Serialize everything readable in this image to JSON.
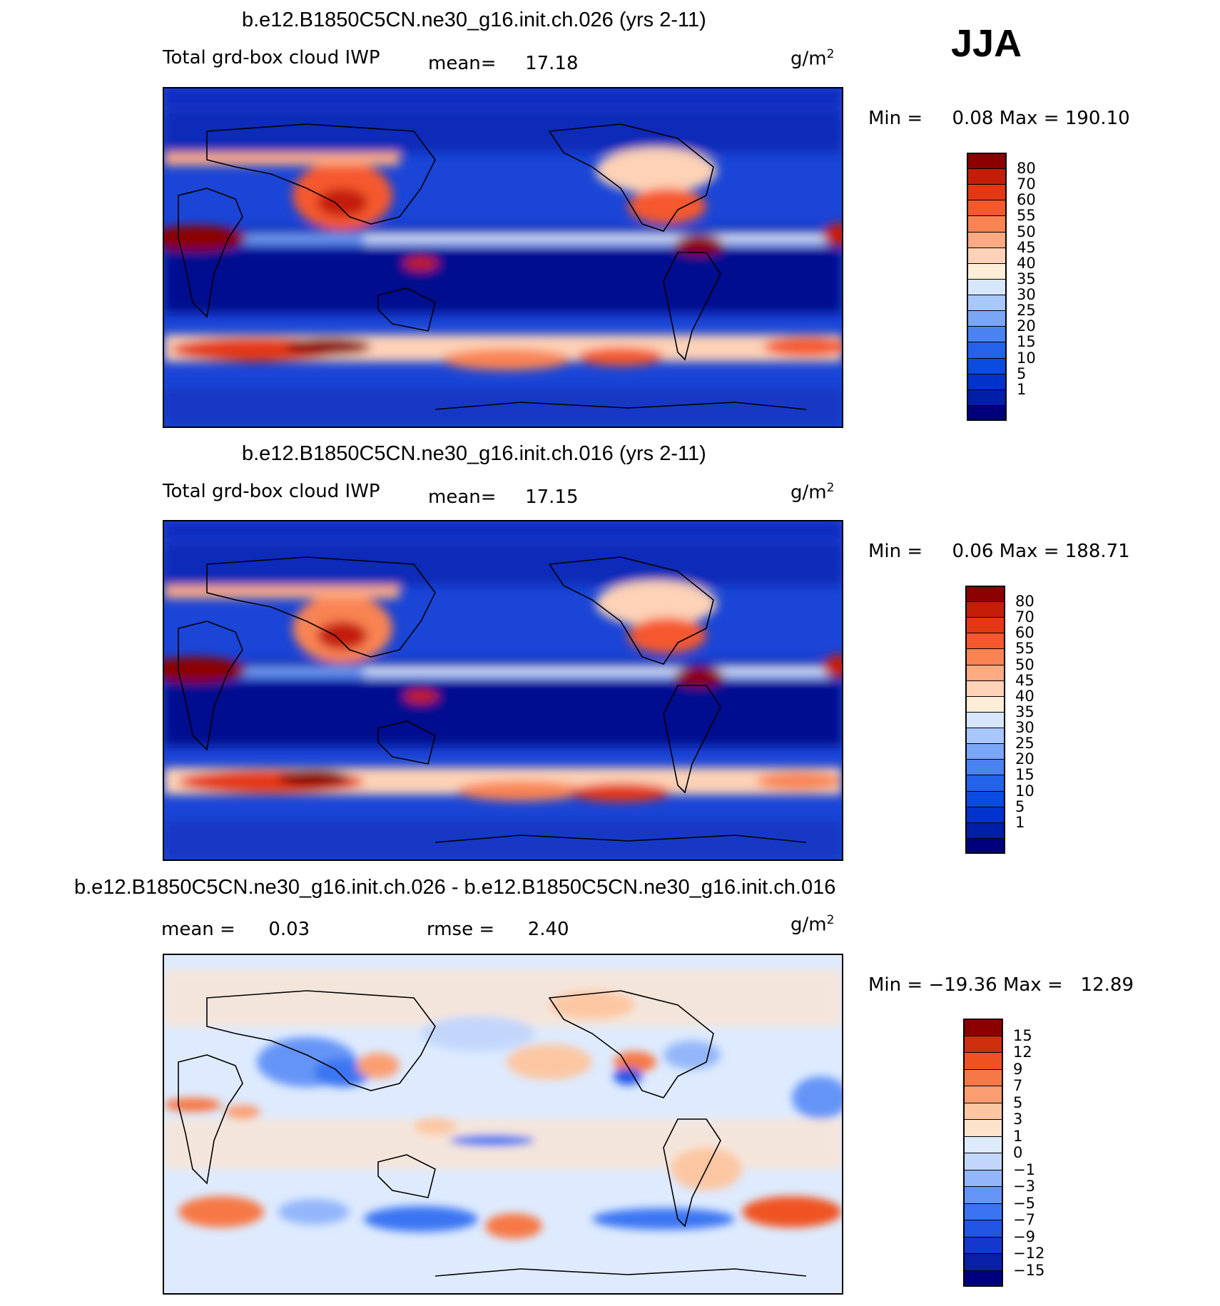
{
  "season": "JJA",
  "units": "g/m",
  "units_sup": "2",
  "palette": {
    "field": [
      "#00007f",
      "#001fa8",
      "#0033cc",
      "#0a4be0",
      "#2362ea",
      "#4a82f2",
      "#7aa6f6",
      "#a8c7fa",
      "#d6e6fd",
      "#fdeed8",
      "#fdd2b6",
      "#fcaa82",
      "#f98353",
      "#f5582d",
      "#e43814",
      "#c41e08",
      "#8c0000"
    ],
    "diff": [
      "#00007f",
      "#0a1fa8",
      "#1437cc",
      "#2055e6",
      "#3a74f2",
      "#6594f7",
      "#93b6fa",
      "#c2d6fc",
      "#deebfe",
      "#fde3cc",
      "#fcc6a2",
      "#fa9e72",
      "#f67846",
      "#ef5222",
      "#cf2e0c",
      "#8c0000"
    ]
  },
  "chart_data": [
    {
      "type": "heatmap",
      "title": "b.e12.B1850C5CN.ne30_g16.init.ch.026 (yrs 2-11)",
      "variable": "Total grd-box cloud IWP",
      "stat_label": "mean=",
      "stat_value": "17.18",
      "min_label": "Min =",
      "min_value": "0.08",
      "max_label": "Max =",
      "max_value": "190.10",
      "colorbar_levels": [
        "80",
        "70",
        "60",
        "55",
        "50",
        "45",
        "40",
        "35",
        "30",
        "25",
        "20",
        "15",
        "10",
        "5",
        "1"
      ]
    },
    {
      "type": "heatmap",
      "title": "b.e12.B1850C5CN.ne30_g16.init.ch.016 (yrs 2-11)",
      "variable": "Total grd-box cloud IWP",
      "stat_label": "mean=",
      "stat_value": "17.15",
      "min_label": "Min =",
      "min_value": "0.06",
      "max_label": "Max =",
      "max_value": "188.71",
      "colorbar_levels": [
        "80",
        "70",
        "60",
        "55",
        "50",
        "45",
        "40",
        "35",
        "30",
        "25",
        "20",
        "15",
        "10",
        "5",
        "1"
      ]
    },
    {
      "type": "heatmap",
      "title": "b.e12.B1850C5CN.ne30_g16.init.ch.026 - b.e12.B1850C5CN.ne30_g16.init.ch.016",
      "stat_label": "mean =",
      "stat_value": "0.03",
      "rmse_label": "rmse =",
      "rmse_value": "2.40",
      "min_label": "Min =",
      "min_value": "−19.36",
      "max_label": "Max =",
      "max_value": "12.89",
      "colorbar_levels": [
        "15",
        "12",
        "9",
        "7",
        "5",
        "3",
        "1",
        "0",
        "−1",
        "−3",
        "−5",
        "−7",
        "−9",
        "−12",
        "−15"
      ]
    }
  ]
}
